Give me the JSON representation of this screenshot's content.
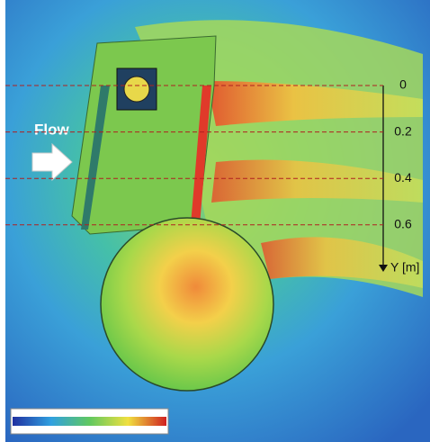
{
  "annotations": {
    "flow": "Flow",
    "y_axis": {
      "label": "Y [m]",
      "ticks": [
        0,
        0.2,
        0.4,
        0.6
      ]
    }
  }
}
